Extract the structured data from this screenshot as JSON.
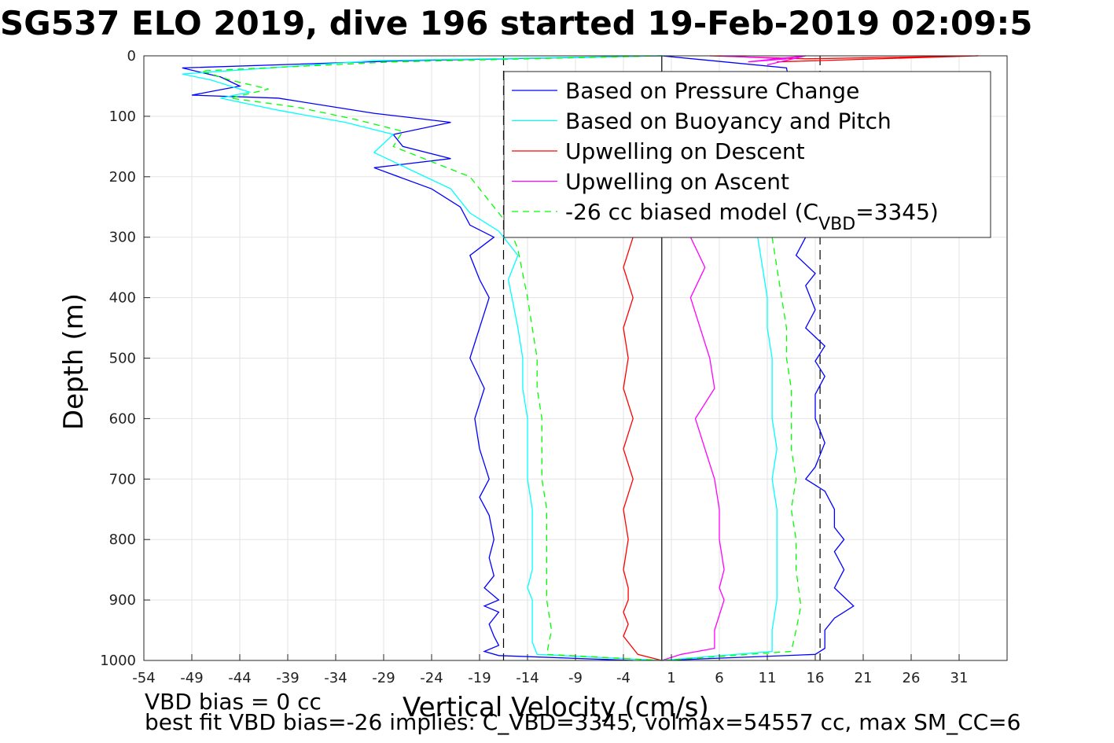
{
  "figure": {
    "title": "SG537 ELO 2019, dive 196 started 19-Feb-2019 02:09:5",
    "note_line1": "VBD bias = 0 cc",
    "note_line2": "best fit VBD bias=-26 implies: C_VBD=3345, volmax=54557 cc, max SM_CC=6"
  },
  "chart_data": {
    "type": "line",
    "title": "SG537 ELO 2019, dive 196 started 19-Feb-2019 02:09:5",
    "xlabel": "Vertical Velocity (cm/s)",
    "ylabel": "Depth (m)",
    "xlim": [
      -54,
      36
    ],
    "ylim": [
      0,
      1000
    ],
    "y_reversed": true,
    "grid": true,
    "x_ticks": [
      -54,
      -49,
      -44,
      -39,
      -34,
      -29,
      -24,
      -19,
      -14,
      -9,
      -4,
      1,
      6,
      11,
      16,
      21,
      26,
      31
    ],
    "y_ticks": [
      0,
      100,
      200,
      300,
      400,
      500,
      600,
      700,
      800,
      900,
      1000
    ],
    "legend_position": "top-right",
    "legend": [
      {
        "label": "Based on Pressure Change",
        "color": "#0000ff",
        "dash": "solid"
      },
      {
        "label": "Based on Buoyancy and Pitch",
        "color": "#00ffff",
        "dash": "solid"
      },
      {
        "label": "Upwelling on Descent",
        "color": "#ff0000",
        "dash": "solid"
      },
      {
        "label": "Upwelling on Ascent",
        "color": "#ff00ff",
        "dash": "solid"
      },
      {
        "label": "-26 cc biased model (C",
        "label_sub": "VBD",
        "label_end": "=3345)",
        "color": "#00ff00",
        "dash": "dashed"
      }
    ],
    "series": [
      {
        "name": "Based on Pressure Change",
        "color": "#0000ff",
        "dash": "solid",
        "x": [
          0,
          -27,
          -50,
          -46,
          -44,
          -49,
          -40,
          -30,
          -22,
          -28,
          -27,
          -22,
          -30,
          -24,
          -21,
          -20,
          -17.5,
          -20,
          -19,
          -18,
          -19,
          -20,
          -18.5,
          -19.5,
          -19,
          -18,
          -19,
          -18,
          -17.5,
          -18,
          -17.5,
          -18.5,
          -17,
          -18.5,
          -17,
          -18,
          -17.5,
          -17,
          -18.5,
          -17,
          -3
        ],
        "y": [
          0,
          8,
          20,
          35,
          50,
          65,
          70,
          95,
          110,
          130,
          150,
          170,
          185,
          220,
          250,
          280,
          300,
          330,
          370,
          400,
          450,
          500,
          550,
          600,
          650,
          700,
          730,
          760,
          800,
          830,
          860,
          880,
          900,
          910,
          920,
          940,
          960,
          975,
          985,
          992,
          1000
        ]
      },
      {
        "name": "Based on Buoyancy and Pitch",
        "color": "#00ffff",
        "dash": "solid",
        "x": [
          0,
          -30,
          -50,
          -47,
          -43,
          -46,
          -40,
          -33,
          -28,
          -30,
          -26,
          -22,
          -20,
          -17,
          -15,
          -16,
          -15.5,
          -15,
          -14.5,
          -14.5,
          -14,
          -14,
          -14,
          -13.5,
          -13.5,
          -13.5,
          -14,
          -13.5,
          -13.5,
          -13.5,
          -13,
          0
        ],
        "y": [
          0,
          8,
          30,
          40,
          60,
          70,
          90,
          110,
          130,
          160,
          190,
          220,
          260,
          290,
          330,
          370,
          410,
          450,
          500,
          550,
          600,
          650,
          700,
          750,
          800,
          850,
          880,
          900,
          930,
          970,
          990,
          1000
        ]
      },
      {
        "name": "Upwelling on Descent",
        "color": "#ff0000",
        "dash": "solid",
        "x": [
          -3,
          -4,
          -3,
          -4,
          -3.5,
          -4,
          -3,
          -4,
          -3,
          -4,
          -3.5,
          -4,
          -3.5,
          -3.5,
          -4,
          -3.5,
          -4,
          -3,
          -2.5,
          0
        ],
        "y": [
          300,
          350,
          400,
          450,
          500,
          550,
          600,
          650,
          700,
          750,
          800,
          850,
          880,
          900,
          920,
          940,
          960,
          980,
          990,
          1000
        ]
      },
      {
        "name": "Upwelling on Ascent",
        "color": "#ff00ff",
        "dash": "solid",
        "x": [
          3,
          4.5,
          3,
          4,
          5,
          5.5,
          3.5,
          4.5,
          5.5,
          6,
          6,
          6.5,
          6,
          6.5,
          5.5,
          5.5,
          2,
          0
        ],
        "y": [
          300,
          350,
          400,
          450,
          500,
          550,
          600,
          650,
          700,
          750,
          800,
          850,
          880,
          900,
          950,
          980,
          990,
          1000
        ]
      },
      {
        "name": "-26 cc biased model (C_VBD=3345)",
        "color": "#00ff00",
        "dash": "dashed",
        "x": [
          0,
          -28,
          -48,
          -45,
          -41,
          -45,
          -38,
          -32,
          -27,
          -28,
          -24,
          -20,
          -18,
          -16,
          -15,
          -14.5,
          -14,
          -13.5,
          -13,
          -13,
          -12.5,
          -12.5,
          -12.5,
          -12,
          -12,
          -12,
          -12,
          -12,
          -11.5,
          -12,
          0
        ],
        "y": [
          0,
          10,
          25,
          40,
          55,
          70,
          85,
          105,
          125,
          150,
          175,
          200,
          240,
          280,
          320,
          360,
          400,
          450,
          500,
          550,
          600,
          650,
          700,
          750,
          800,
          850,
          880,
          900,
          950,
          990,
          1000
        ]
      }
    ],
    "ascent_series": [
      {
        "name": "Based on Pressure Change",
        "color": "#0000ff",
        "dash": "solid",
        "x": [
          0,
          13,
          14,
          15,
          14,
          16,
          15,
          16,
          15,
          17,
          16,
          17,
          16,
          16,
          17,
          16,
          15,
          17,
          18,
          18,
          19,
          18,
          19,
          18,
          20,
          18,
          17,
          17,
          17,
          16,
          0
        ],
        "y": [
          0,
          20,
          100,
          300,
          330,
          360,
          380,
          420,
          450,
          480,
          505,
          530,
          560,
          600,
          640,
          680,
          700,
          720,
          750,
          780,
          800,
          820,
          850,
          880,
          910,
          930,
          950,
          970,
          980,
          990,
          1000
        ]
      },
      {
        "name": "Based on Buoyancy and Pitch",
        "color": "#00ffff",
        "dash": "solid",
        "x": [
          10,
          10.5,
          11,
          11,
          11.5,
          11.5,
          11.5,
          12,
          11.5,
          12,
          12,
          12,
          12,
          11.5,
          11.5,
          0
        ],
        "y": [
          300,
          350,
          400,
          450,
          500,
          550,
          600,
          650,
          700,
          750,
          800,
          850,
          900,
          950,
          985,
          1000
        ]
      },
      {
        "name": "-26 cc biased model (C_VBD=3345)",
        "color": "#00ff00",
        "dash": "dashed",
        "x": [
          11.5,
          12,
          12.5,
          13,
          13,
          13.5,
          13.5,
          13.5,
          14,
          13.5,
          14,
          14,
          14.5,
          14,
          13.5,
          0
        ],
        "y": [
          300,
          350,
          400,
          450,
          500,
          550,
          600,
          650,
          700,
          750,
          800,
          850,
          910,
          950,
          985,
          1000
        ]
      }
    ],
    "surface_series": [
      {
        "name": "Upwelling on Descent",
        "color": "#ff0000",
        "dash": "solid",
        "x": [
          5,
          15,
          33,
          12
        ],
        "y": [
          0,
          5,
          0,
          10
        ]
      },
      {
        "name": "Upwelling on Ascent",
        "color": "#ff00ff",
        "dash": "solid",
        "x": [
          6,
          13,
          9,
          15,
          11
        ],
        "y": [
          0,
          5,
          10,
          0,
          15
        ]
      }
    ],
    "reference_lines": [
      {
        "x": 0,
        "style": "solid",
        "color": "#000000"
      },
      {
        "x": -16.5,
        "style": "dashed",
        "color": "#000000"
      },
      {
        "x": 16.5,
        "style": "dashed",
        "color": "#000000"
      }
    ]
  }
}
